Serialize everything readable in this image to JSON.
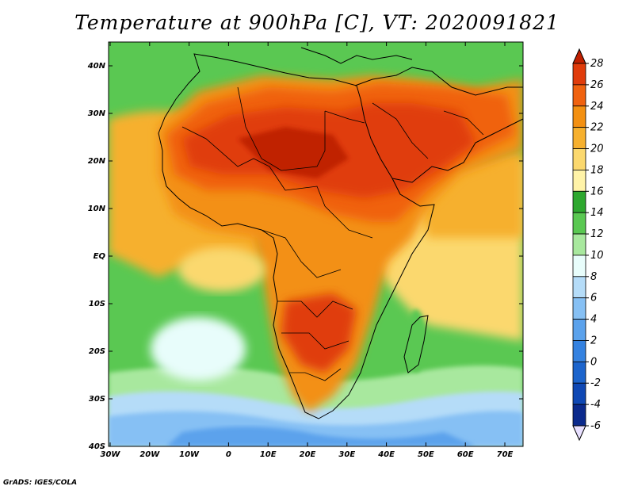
{
  "title": "Temperature at 900hPa [C], VT: 2020091821",
  "credit": "GrADS: IGES/COLA",
  "map": {
    "lon_ticks": [
      "30W",
      "20W",
      "10W",
      "0",
      "10E",
      "20E",
      "30E",
      "40E",
      "50E",
      "60E",
      "70E"
    ],
    "lat_ticks": [
      "40N",
      "30N",
      "20N",
      "10N",
      "EQ",
      "10S",
      "20S",
      "30S",
      "40S"
    ]
  },
  "colorbar": {
    "labels": [
      "28",
      "26",
      "24",
      "22",
      "20",
      "18",
      "16",
      "14",
      "12",
      "10",
      "8",
      "6",
      "4",
      "2",
      "0",
      "-2",
      "-4",
      "-6"
    ],
    "colors": [
      "#c02000",
      "#e03c0b",
      "#f0620f",
      "#f39012",
      "#f6b02e",
      "#fbd86e",
      "#fff3a8",
      "#2ea82f",
      "#5ac852",
      "#a8e89e",
      "#e8fdfb",
      "#b5dcf8",
      "#86c0f4",
      "#5ba2ec",
      "#3582e0",
      "#1c64cc",
      "#0f48b4",
      "#0b2a8c",
      "#061868"
    ],
    "top_color": "#c02000",
    "bottom_color": "#e8e0ff"
  }
}
